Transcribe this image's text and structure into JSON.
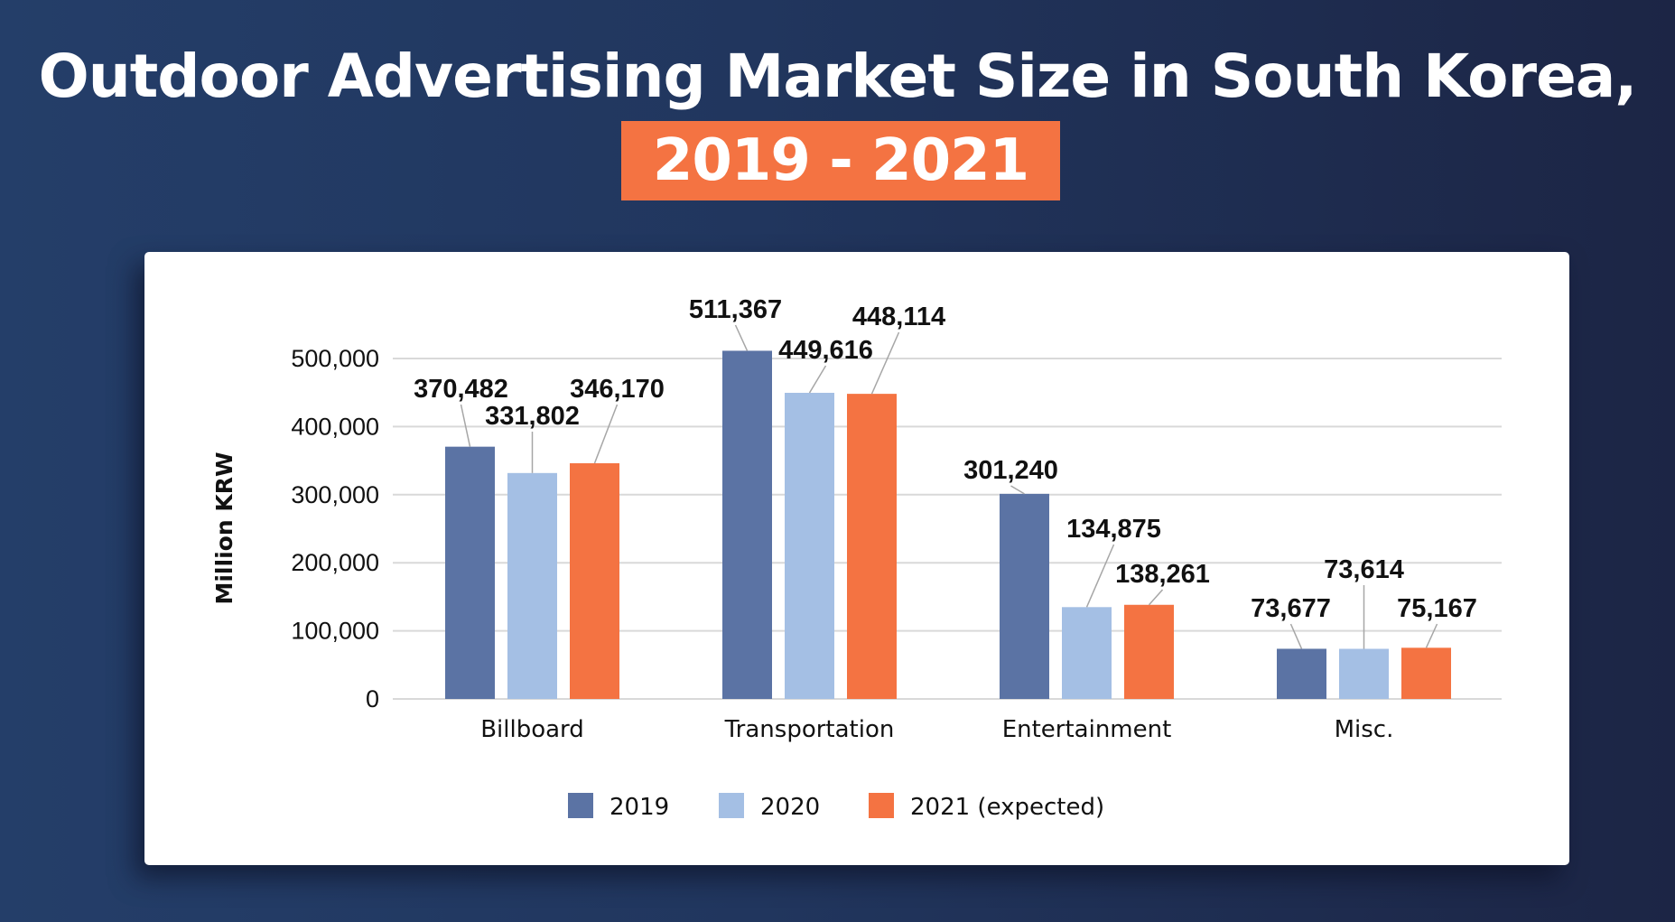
{
  "header": {
    "title": "Outdoor Advertising Market Size in South Korea,",
    "subtitle": "2019 - 2021"
  },
  "colors": {
    "accent": "#f47342",
    "series_2019": "#5b73a4",
    "series_2020": "#a4bfe4",
    "series_2021": "#f47342"
  },
  "chart_data": {
    "type": "bar",
    "title": "Outdoor Advertising Market Size in South Korea, 2019 - 2021",
    "xlabel": "",
    "ylabel": "Million KRW",
    "ylim": [
      0,
      500000
    ],
    "yticks": [
      0,
      100000,
      200000,
      300000,
      400000,
      500000
    ],
    "ytick_labels": [
      "0",
      "100,000",
      "200,000",
      "300,000",
      "400,000",
      "500,000"
    ],
    "grid": true,
    "legend_position": "bottom",
    "categories": [
      "Billboard",
      "Transportation",
      "Entertainment",
      "Misc."
    ],
    "series": [
      {
        "name": "2019",
        "color": "#5b73a4",
        "values": [
          370482,
          511367,
          301240,
          73677
        ],
        "labels": [
          "370,482",
          "511,367",
          "301,240",
          "73,677"
        ]
      },
      {
        "name": "2020",
        "color": "#a4bfe4",
        "values": [
          331802,
          449616,
          134875,
          73614
        ],
        "labels": [
          "331,802",
          "449,616",
          "134,875",
          "73,614"
        ]
      },
      {
        "name": "2021 (expected)",
        "color": "#f47342",
        "values": [
          346170,
          448114,
          138261,
          75167
        ],
        "labels": [
          "346,170",
          "448,114",
          "138,261",
          "75,167"
        ]
      }
    ]
  }
}
